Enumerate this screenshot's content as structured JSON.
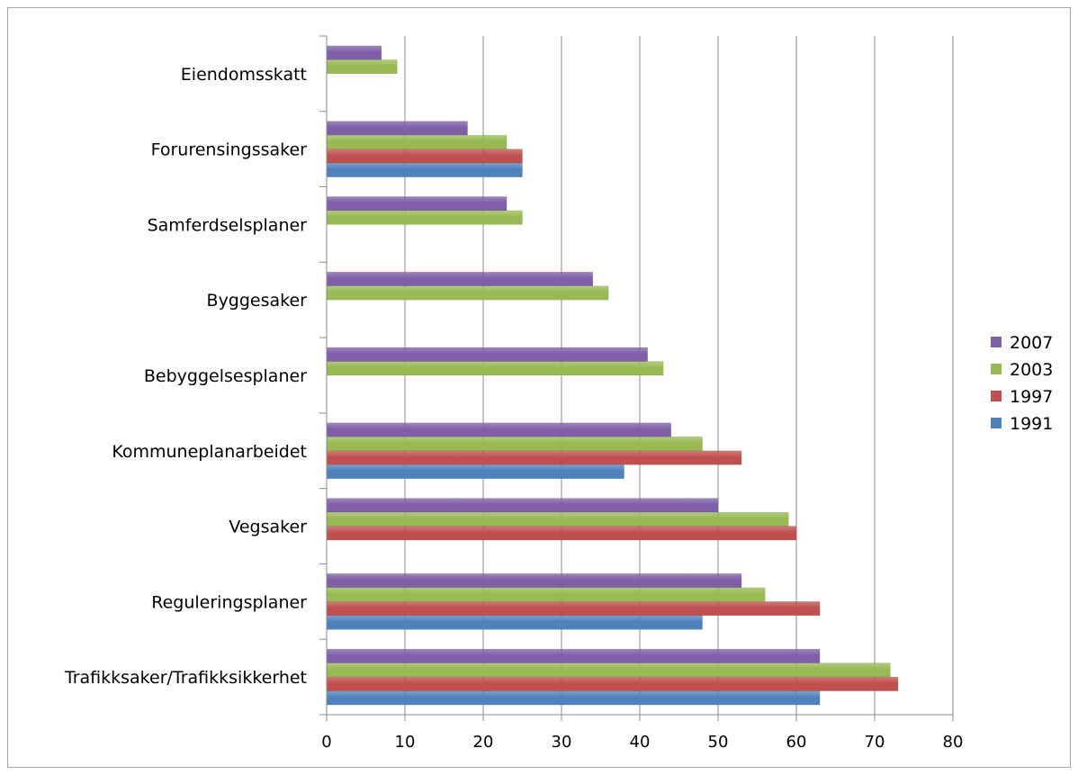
{
  "chart_data": {
    "type": "bar",
    "orientation": "horizontal",
    "categories": [
      "Eiendomsskatt",
      "Forurensingssaker",
      "Samferdselsplaner",
      "Byggesaker",
      "Bebyggelsesplaner",
      "Kommuneplanarbeidet",
      "Vegsaker",
      "Reguleringsplaner",
      "Trafikksaker/Trafikksikkerhet"
    ],
    "series": [
      {
        "name": "2007",
        "color": "#7f5fa8",
        "values": [
          7,
          18,
          23,
          34,
          41,
          44,
          50,
          53,
          63
        ]
      },
      {
        "name": "2003",
        "color": "#98b954",
        "values": [
          9,
          23,
          25,
          36,
          43,
          48,
          59,
          56,
          72
        ]
      },
      {
        "name": "1997",
        "color": "#c0504d",
        "values": [
          null,
          25,
          null,
          null,
          null,
          53,
          60,
          63,
          73
        ]
      },
      {
        "name": "1991",
        "color": "#4f81bd",
        "values": [
          null,
          25,
          null,
          null,
          null,
          38,
          null,
          48,
          63
        ]
      }
    ],
    "xlim": [
      0,
      80
    ],
    "xticks": [
      "0",
      "10",
      "20",
      "30",
      "40",
      "50",
      "60",
      "70",
      "80"
    ],
    "grid": true,
    "legend_position": "right"
  }
}
